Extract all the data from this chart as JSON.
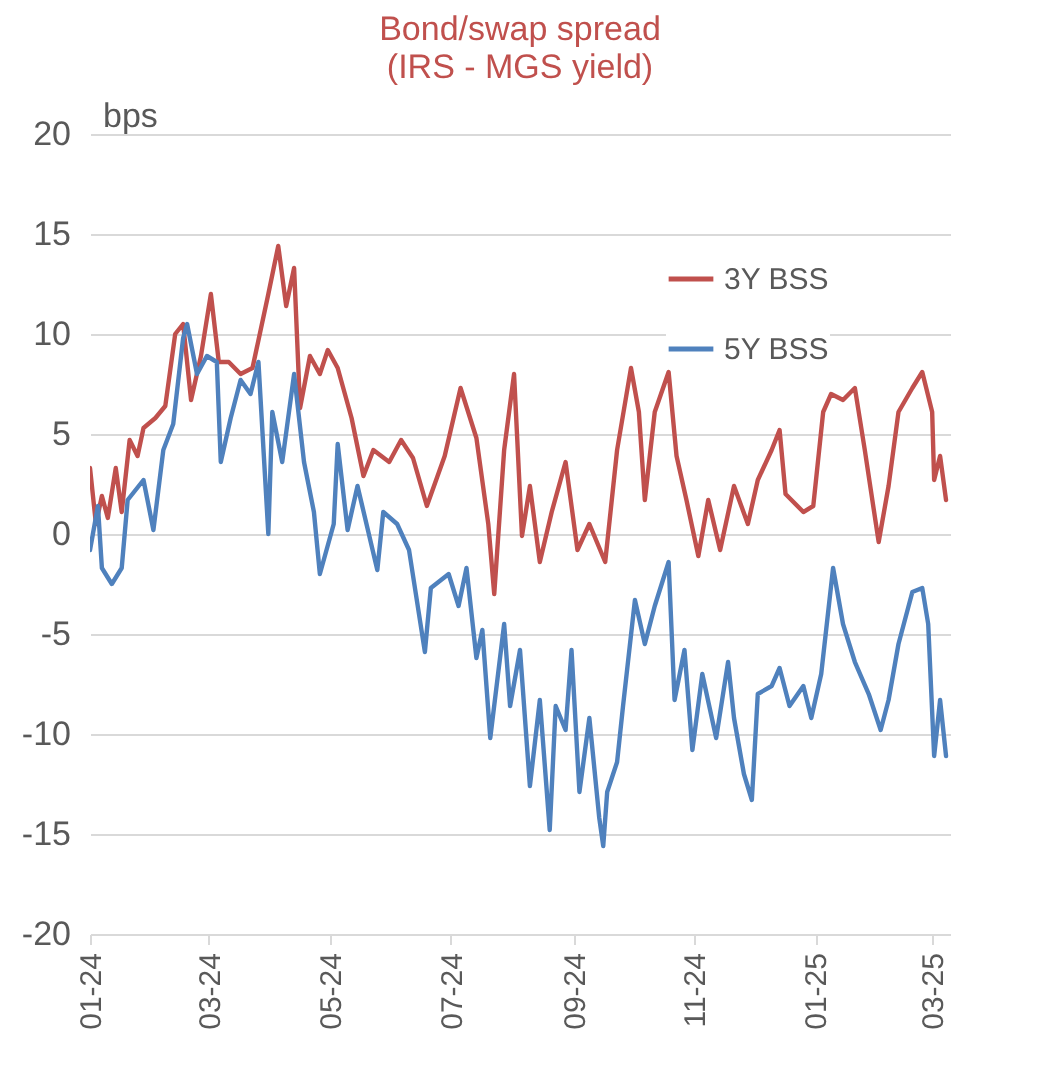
{
  "chart_data": {
    "type": "line",
    "title": "Bond/swap spread",
    "subtitle": "(IRS - MGS yield)",
    "ylabel": "bps",
    "xlim": [
      "2024-01-01",
      "2025-03-10"
    ],
    "xticks": [
      {
        "value": "2024-01-01",
        "label": "01-24"
      },
      {
        "value": "2024-03-01",
        "label": "03-24"
      },
      {
        "value": "2024-05-01",
        "label": "05-24"
      },
      {
        "value": "2024-07-01",
        "label": "07-24"
      },
      {
        "value": "2024-09-01",
        "label": "09-24"
      },
      {
        "value": "2024-11-01",
        "label": "11-24"
      },
      {
        "value": "2025-01-01",
        "label": "01-25"
      },
      {
        "value": "2025-03-01",
        "label": "03-25"
      }
    ],
    "ylim": [
      -20,
      20
    ],
    "yticks": [
      -20,
      -15,
      -10,
      -5,
      0,
      5,
      10,
      15,
      20
    ],
    "grid": "y",
    "legend": "top right",
    "line_style": "solid",
    "series": [
      {
        "name": "3Y BSS",
        "color": "#c0504d",
        "x": [
          "2024-01-01",
          "2024-01-04",
          "2024-01-07",
          "2024-01-10",
          "2024-01-14",
          "2024-01-17",
          "2024-01-21",
          "2024-01-25",
          "2024-01-28",
          "2024-02-03",
          "2024-02-08",
          "2024-02-13",
          "2024-02-17",
          "2024-02-21",
          "2024-02-26",
          "2024-03-02",
          "2024-03-06",
          "2024-03-11",
          "2024-03-17",
          "2024-03-23",
          "2024-03-31",
          "2024-04-05",
          "2024-04-09",
          "2024-04-13",
          "2024-04-16",
          "2024-04-21",
          "2024-04-26",
          "2024-04-30",
          "2024-05-05",
          "2024-05-12",
          "2024-05-18",
          "2024-05-23",
          "2024-05-31",
          "2024-06-06",
          "2024-06-12",
          "2024-06-19",
          "2024-06-28",
          "2024-07-06",
          "2024-07-14",
          "2024-07-20",
          "2024-07-23",
          "2024-07-28",
          "2024-08-02",
          "2024-08-06",
          "2024-08-10",
          "2024-08-15",
          "2024-08-21",
          "2024-08-28",
          "2024-09-03",
          "2024-09-09",
          "2024-09-17",
          "2024-09-23",
          "2024-09-30",
          "2024-10-04",
          "2024-10-07",
          "2024-10-12",
          "2024-10-19",
          "2024-10-23",
          "2024-10-28",
          "2024-11-03",
          "2024-11-08",
          "2024-11-14",
          "2024-11-21",
          "2024-11-28",
          "2024-12-03",
          "2024-12-10",
          "2024-12-14",
          "2024-12-17",
          "2024-12-26",
          "2024-12-31",
          "2025-01-05",
          "2025-01-09",
          "2025-01-15",
          "2025-01-21",
          "2025-01-26",
          "2025-02-02",
          "2025-02-07",
          "2025-02-12",
          "2025-02-19",
          "2025-02-24",
          "2025-03-01",
          "2025-03-02",
          "2025-03-05",
          "2025-03-08"
        ],
        "values": [
          3.3,
          0.5,
          1.9,
          0.8,
          3.3,
          1.1,
          4.7,
          3.9,
          5.3,
          5.8,
          6.4,
          10,
          10.5,
          6.7,
          8.9,
          12,
          8.6,
          8.6,
          8,
          8.3,
          12,
          14.4,
          11.4,
          13.3,
          6.3,
          8.9,
          8,
          9.2,
          8.3,
          5.8,
          2.9,
          4.2,
          3.6,
          4.7,
          3.8,
          1.4,
          3.9,
          7.3,
          4.8,
          0.5,
          -3,
          4.2,
          8,
          -0.1,
          2.4,
          -1.4,
          1.1,
          3.6,
          -0.8,
          0.5,
          -1.4,
          4.2,
          8.3,
          6.1,
          1.7,
          6.1,
          8.1,
          3.9,
          1.7,
          -1.1,
          1.7,
          -0.8,
          2.4,
          0.5,
          2.7,
          4.2,
          5.2,
          2,
          1.1,
          1.4,
          6.1,
          7,
          6.7,
          7.3,
          4.2,
          -0.4,
          2.4,
          6.1,
          7.3,
          8.1,
          6.1,
          2.7,
          3.9,
          1.7
        ]
      },
      {
        "name": "5Y BSS",
        "color": "#4f81bd",
        "x": [
          "2024-01-01",
          "2024-01-05",
          "2024-01-07",
          "2024-01-12",
          "2024-01-17",
          "2024-01-20",
          "2024-01-28",
          "2024-02-02",
          "2024-02-07",
          "2024-02-12",
          "2024-02-17",
          "2024-02-19",
          "2024-02-24",
          "2024-02-29",
          "2024-03-05",
          "2024-03-07",
          "2024-03-12",
          "2024-03-17",
          "2024-03-22",
          "2024-03-26",
          "2024-03-31",
          "2024-04-02",
          "2024-04-07",
          "2024-04-13",
          "2024-04-18",
          "2024-04-23",
          "2024-04-26",
          "2024-05-03",
          "2024-05-05",
          "2024-05-10",
          "2024-05-15",
          "2024-05-25",
          "2024-05-28",
          "2024-06-04",
          "2024-06-10",
          "2024-06-18",
          "2024-06-21",
          "2024-06-30",
          "2024-07-05",
          "2024-07-09",
          "2024-07-14",
          "2024-07-17",
          "2024-07-21",
          "2024-07-28",
          "2024-07-31",
          "2024-08-05",
          "2024-08-10",
          "2024-08-15",
          "2024-08-20",
          "2024-08-23",
          "2024-08-28",
          "2024-08-31",
          "2024-09-04",
          "2024-09-09",
          "2024-09-14",
          "2024-09-16",
          "2024-09-18",
          "2024-09-23",
          "2024-09-26",
          "2024-10-02",
          "2024-10-07",
          "2024-10-12",
          "2024-10-19",
          "2024-10-22",
          "2024-10-27",
          "2024-10-31",
          "2024-11-05",
          "2024-11-12",
          "2024-11-18",
          "2024-11-21",
          "2024-11-26",
          "2024-11-30",
          "2024-12-03",
          "2024-12-10",
          "2024-12-14",
          "2024-12-19",
          "2024-12-26",
          "2024-12-30",
          "2025-01-04",
          "2025-01-10",
          "2025-01-15",
          "2025-01-21",
          "2025-01-28",
          "2025-02-03",
          "2025-02-07",
          "2025-02-12",
          "2025-02-19",
          "2025-02-24",
          "2025-02-27",
          "2025-03-02",
          "2025-03-05",
          "2025-03-08"
        ],
        "values": [
          -0.8,
          1.4,
          -1.7,
          -2.5,
          -1.7,
          1.7,
          2.7,
          0.2,
          4.2,
          5.5,
          9.8,
          10.5,
          8,
          8.9,
          8.6,
          3.6,
          5.8,
          7.7,
          7,
          8.6,
          0,
          6.1,
          3.6,
          8,
          3.6,
          1.1,
          -2,
          0.5,
          4.5,
          0.2,
          2.4,
          -1.8,
          1.1,
          0.5,
          -0.8,
          -5.9,
          -2.7,
          -2,
          -3.6,
          -1.7,
          -6.2,
          -4.8,
          -10.2,
          -4.5,
          -8.6,
          -5.8,
          -12.6,
          -8.3,
          -14.8,
          -8.6,
          -9.8,
          -5.8,
          -12.9,
          -9.2,
          -14.2,
          -15.6,
          -12.9,
          -11.4,
          -8.6,
          -3.3,
          -5.5,
          -3.6,
          -1.4,
          -8.3,
          -5.8,
          -10.8,
          -7,
          -10.2,
          -6.4,
          -9.2,
          -12,
          -13.3,
          -8,
          -7.6,
          -6.7,
          -8.6,
          -7.6,
          -9.2,
          -7,
          -1.7,
          -4.5,
          -6.4,
          -8,
          -9.8,
          -8.3,
          -5.5,
          -2.9,
          -2.7,
          -4.5,
          -11.1,
          -8.3,
          -11.1
        ]
      }
    ]
  }
}
